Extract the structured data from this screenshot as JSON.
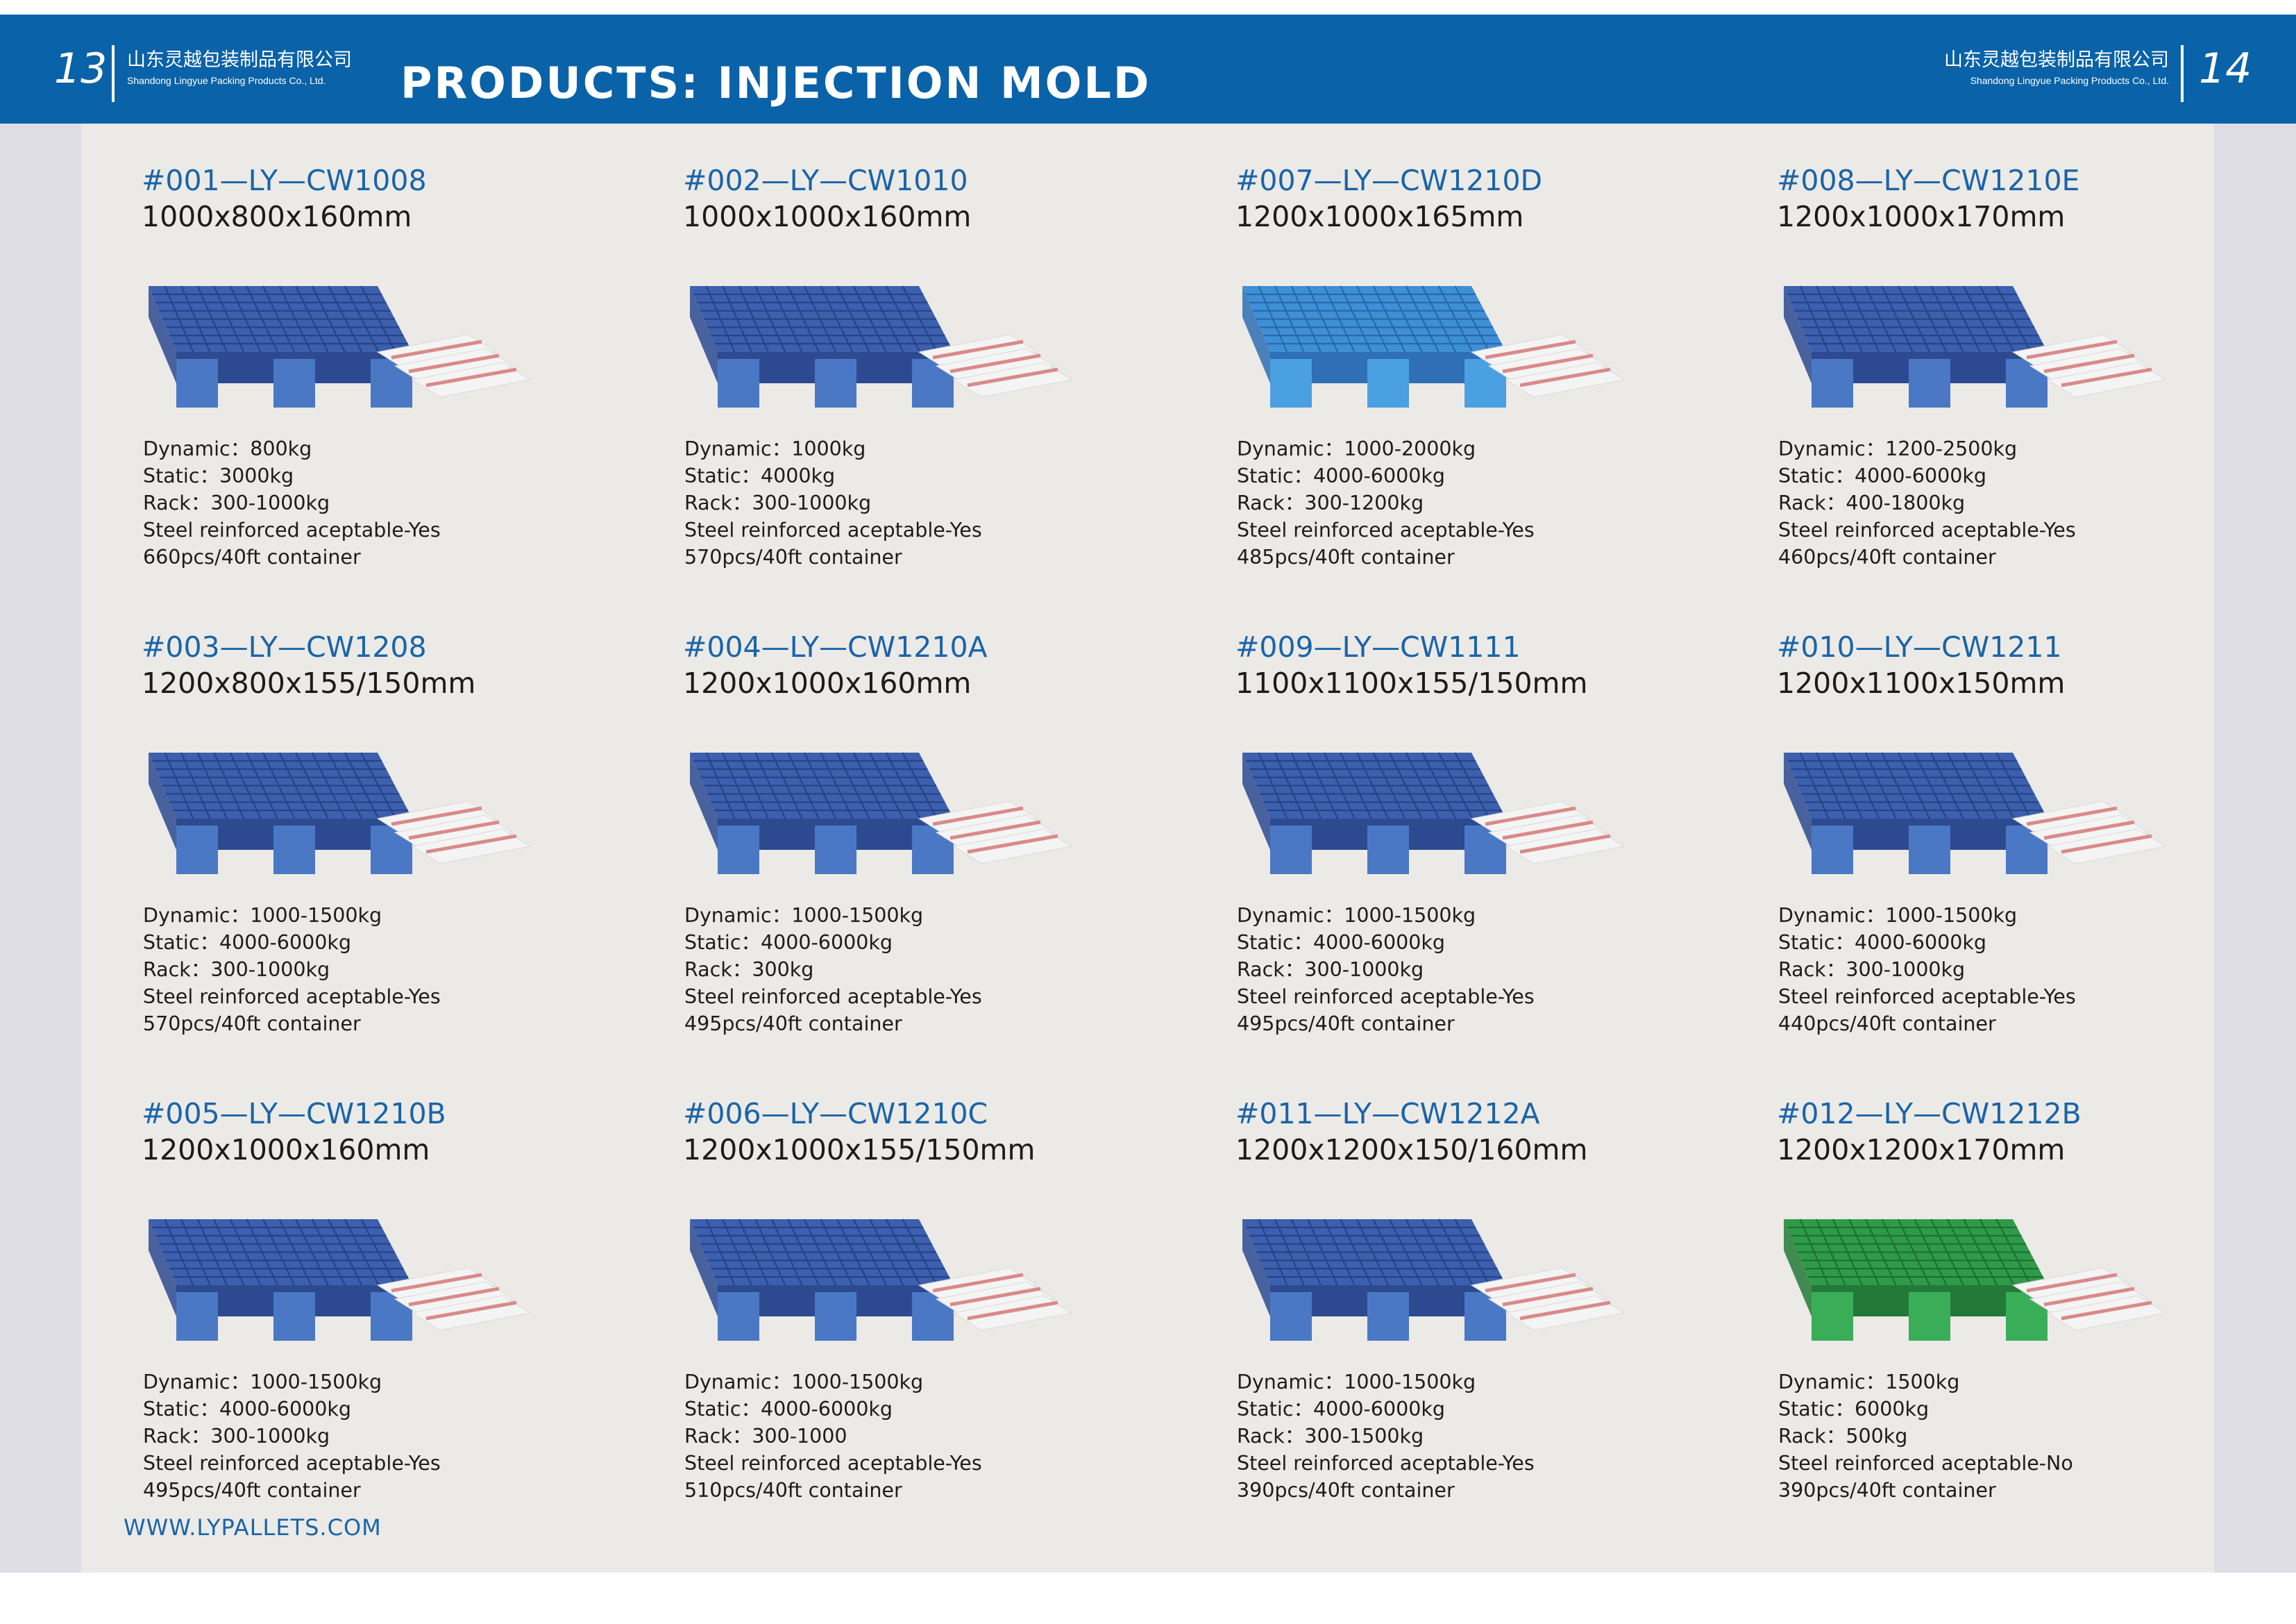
{
  "header": {
    "page_left": "13",
    "page_right": "14",
    "company_cn": "山东灵越包装制品有限公司",
    "company_en": "Shandong Lingyue Packing Products Co., Ltd.",
    "title": "PRODUCTS: INJECTION MOLD",
    "bar_color": "#0a62a8"
  },
  "products": [
    {
      "code": "#001—LY—CW1008",
      "size": "1000x800x160mm",
      "color": "blue",
      "dynamic": "Dynamic：800kg",
      "static": "Static：3000kg",
      "rack": "Rack：300-1000kg",
      "steel": "Steel reinforced aceptable-Yes",
      "container": "660pcs/40ft container"
    },
    {
      "code": "#002—LY—CW1010",
      "size": "1000x1000x160mm",
      "color": "blue",
      "dynamic": "Dynamic：1000kg",
      "static": "Static：4000kg",
      "rack": "Rack：300-1000kg",
      "steel": "Steel reinforced aceptable-Yes",
      "container": "570pcs/40ft container"
    },
    {
      "code": "#007—LY—CW1210D",
      "size": "1200x1000x165mm",
      "color": "light-blue",
      "dynamic": "Dynamic：1000-2000kg",
      "static": "Static：4000-6000kg",
      "rack": "Rack：300-1200kg",
      "steel": "Steel reinforced aceptable-Yes",
      "container": "485pcs/40ft container"
    },
    {
      "code": "#008—LY—CW1210E",
      "size": "1200x1000x170mm",
      "color": "blue",
      "dynamic": "Dynamic：1200-2500kg",
      "static": "Static：4000-6000kg",
      "rack": "Rack：400-1800kg",
      "steel": "Steel reinforced aceptable-Yes",
      "container": "460pcs/40ft container"
    },
    {
      "code": "#003—LY—CW1208",
      "size": "1200x800x155/150mm",
      "color": "blue",
      "dynamic": "Dynamic：1000-1500kg",
      "static": "Static：4000-6000kg",
      "rack": "Rack：300-1000kg",
      "steel": "Steel reinforced aceptable-Yes",
      "container": "570pcs/40ft container"
    },
    {
      "code": "#004—LY—CW1210A",
      "size": "1200x1000x160mm",
      "color": "blue",
      "dynamic": "Dynamic：1000-1500kg",
      "static": "Static：4000-6000kg",
      "rack": "Rack：300kg",
      "steel": "Steel reinforced aceptable-Yes",
      "container": "495pcs/40ft container"
    },
    {
      "code": "#009—LY—CW1111",
      "size": "1100x1100x155/150mm",
      "color": "blue",
      "dynamic": "Dynamic：1000-1500kg",
      "static": "Static：4000-6000kg",
      "rack": "Rack：300-1000kg",
      "steel": "Steel reinforced aceptable-Yes",
      "container": "495pcs/40ft container"
    },
    {
      "code": "#010—LY—CW1211",
      "size": "1200x1100x150mm",
      "color": "blue",
      "dynamic": "Dynamic：1000-1500kg",
      "static": "Static：4000-6000kg",
      "rack": "Rack：300-1000kg",
      "steel": "Steel reinforced aceptable-Yes",
      "container": "440pcs/40ft container"
    },
    {
      "code": "#005—LY—CW1210B",
      "size": "1200x1000x160mm",
      "color": "blue",
      "dynamic": "Dynamic：1000-1500kg",
      "static": "Static：4000-6000kg",
      "rack": "Rack：300-1000kg",
      "steel": "Steel reinforced aceptable-Yes",
      "container": "495pcs/40ft container"
    },
    {
      "code": "#006—LY—CW1210C",
      "size": "1200x1000x155/150mm",
      "color": "blue",
      "dynamic": "Dynamic：1000-1500kg",
      "static": "Static：4000-6000kg",
      "rack": "Rack：300-1000",
      "steel": "Steel reinforced aceptable-Yes",
      "container": "510pcs/40ft container"
    },
    {
      "code": "#011—LY—CW1212A",
      "size": "1200x1200x150/160mm",
      "color": "blue",
      "dynamic": "Dynamic：1000-1500kg",
      "static": "Static：4000-6000kg",
      "rack": "Rack：300-1500kg",
      "steel": "Steel reinforced aceptable-Yes",
      "container": "390pcs/40ft container"
    },
    {
      "code": "#012—LY—CW1212B",
      "size": "1200x1200x170mm",
      "color": "green",
      "dynamic": "Dynamic：1500kg",
      "static": "Static：6000kg",
      "rack": "Rack：500kg",
      "steel": "Steel reinforced aceptable-No",
      "container": "390pcs/40ft container"
    }
  ],
  "pallet_colors": {
    "blue": {
      "top": "#3c5fae",
      "side": "#2d4a90",
      "leg": "#4a78c4",
      "grid": "#1d3572"
    },
    "light-blue": {
      "top": "#3d8fd6",
      "side": "#2f6fb3",
      "leg": "#4aa0e0",
      "grid": "#1f5590"
    },
    "green": {
      "top": "#2f9a4a",
      "side": "#237a38",
      "leg": "#3aad58",
      "grid": "#145a26"
    }
  },
  "footer": {
    "website": "WWW.LYPALLETS.COM"
  }
}
